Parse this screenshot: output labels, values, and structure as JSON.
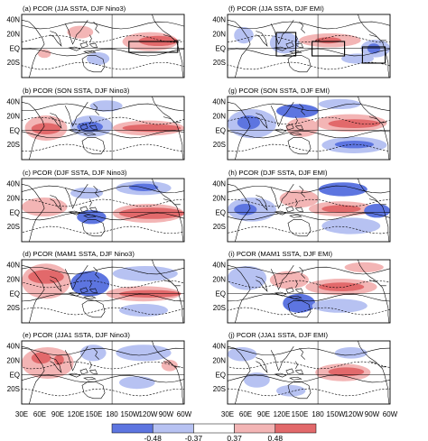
{
  "panels": [
    {
      "label": "(a) PCOR (JJA SSTA, DJF Nino3)"
    },
    {
      "label": "(b) PCOR (SON SSTA, DJF Nino3)"
    },
    {
      "label": "(c) PCOR (DJF SSTA, DJF Nino3)"
    },
    {
      "label": "(d) PCOR (MAM1 SSTA, DJF Nino3)"
    },
    {
      "label": "(e) PCOR (JJA1 SSTA, DJF Nino3)"
    },
    {
      "label": "(f) PCOR (JJA SSTA, DJF EMI)"
    },
    {
      "label": "(g) PCOR (SON SSTA, DJF EMI)"
    },
    {
      "label": "(h) PCOR (DJF SSTA, DJF EMI)"
    },
    {
      "label": "(i) PCOR (MAM1 SSTA, DJF EMI)"
    },
    {
      "label": "(j) PCOR (JJA1 SSTA, DJF EMI)"
    }
  ],
  "lat_labels": [
    "40N",
    "20N",
    "EQ",
    "20S"
  ],
  "lon_labels": [
    "30E",
    "60E",
    "90E",
    "120E",
    "150E",
    "180",
    "150W",
    "120W",
    "90W",
    "60W"
  ],
  "colorbar": {
    "ticks": [
      "-0.48",
      "-0.37",
      "0.37",
      "0.48"
    ],
    "colors": [
      "#5d75e0",
      "#b7c2f2",
      "#ffffff",
      "#f3b5b5",
      "#e2696b"
    ]
  },
  "map_extent": {
    "lon_min": 30,
    "lon_max": 300,
    "lat_min": -30,
    "lat_max": 45
  }
}
